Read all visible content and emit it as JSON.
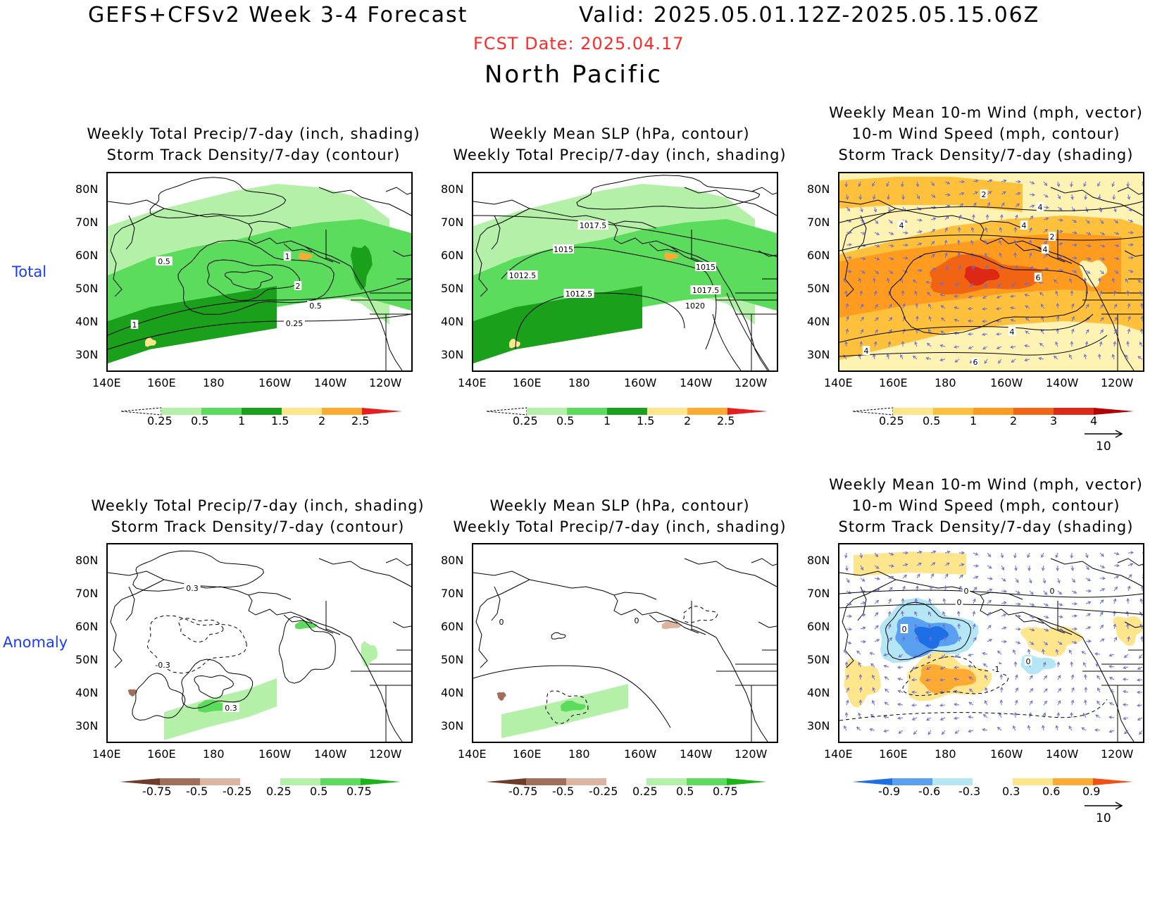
{
  "header": {
    "title": "GEFS+CFSv2 Week 3-4 Forecast",
    "valid": "Valid: 2025.05.01.12Z-2025.05.15.06Z",
    "fcst_date": "FCST Date: 2025.04.17",
    "region": "North Pacific"
  },
  "row_labels": {
    "total": "Total",
    "anomaly": "Anomaly"
  },
  "panels": {
    "p1": {
      "line1": "Weekly Total Precip/7-day (inch, shading)",
      "line2": "Storm Track Density/7-day (contour)"
    },
    "p2": {
      "line1": "Weekly Mean SLP (hPa, contour)",
      "line2": "Weekly Total Precip/7-day (inch, shading)"
    },
    "p3": {
      "line1": "Weekly Mean 10-m Wind (mph, vector)",
      "line2": "10-m Wind Speed (mph, contour)",
      "line3": "Storm Track Density/7-day (shading)"
    },
    "p4": {
      "line1": "Weekly Total Precip/7-day (inch, shading)",
      "line2": "Storm Track Density/7-day (contour)"
    },
    "p5": {
      "line1": "Weekly Mean SLP (hPa, contour)",
      "line2": "Weekly Total Precip/7-day (inch, shading)"
    },
    "p6": {
      "line1": "Weekly Mean 10-m Wind (mph, vector)",
      "line2": "10-m Wind Speed (mph, contour)",
      "line3": "Storm Track Density/7-day (shading)"
    }
  },
  "axes": {
    "lat_labels": [
      "80N",
      "70N",
      "60N",
      "50N",
      "40N",
      "30N"
    ],
    "lon_labels": [
      "140E",
      "160E",
      "180",
      "160W",
      "140W",
      "120W"
    ]
  },
  "contour_labels": {
    "p1": [
      "0.5",
      "1",
      "2",
      "0.5",
      "0.25",
      "1"
    ],
    "p2": [
      "1017.5",
      "1015",
      "1012.5",
      "1012.5",
      "1015",
      "1017.5",
      "1020"
    ],
    "p3": [
      "2",
      "4",
      "4",
      "4",
      "2",
      "4",
      "6",
      "4",
      "4",
      "6"
    ],
    "p4": [
      "0.3",
      "-0.3",
      "0.3"
    ],
    "p5": [
      "0",
      "0"
    ],
    "p6": [
      "0",
      "0",
      "0",
      "0",
      "-1",
      "0"
    ]
  },
  "colorbars": {
    "precip_total": {
      "labels": [
        "0.25",
        "0.5",
        "1",
        "1.5",
        "2",
        "2.5"
      ],
      "colors": [
        "#ffffff",
        "#b4f0a8",
        "#5cdc5c",
        "#1aa01a",
        "#ffe68c",
        "#ffaa32",
        "#e61e1e"
      ]
    },
    "storm_total": {
      "labels": [
        "0.25",
        "0.5",
        "1",
        "2",
        "3",
        "4"
      ],
      "colors": [
        "#ffffff",
        "#ffe68c",
        "#ffc03c",
        "#ff9b1e",
        "#f06414",
        "#dc2814",
        "#b40000"
      ]
    },
    "precip_anom": {
      "labels": [
        "-0.75",
        "-0.5",
        "-0.25",
        "0.25",
        "0.5",
        "0.75"
      ],
      "colors": [
        "#6e3c28",
        "#a06e5a",
        "#dcb4a0",
        "#ffffff",
        "#b4f0a8",
        "#5cdc5c",
        "#1ab41a"
      ]
    },
    "storm_anom": {
      "labels": [
        "-0.9",
        "-0.6",
        "-0.3",
        "0.3",
        "0.6",
        "0.9"
      ],
      "colors": [
        "#1e6ee6",
        "#5aa0f0",
        "#b4e6f5",
        "#ffffff",
        "#ffe68c",
        "#ffaa32",
        "#f05014"
      ]
    }
  },
  "vector_reference": "10",
  "colors": {
    "wind_vector": "#6e6ed2",
    "row_label": "#1a3cff",
    "fcst_date": "#ff2a2a"
  }
}
